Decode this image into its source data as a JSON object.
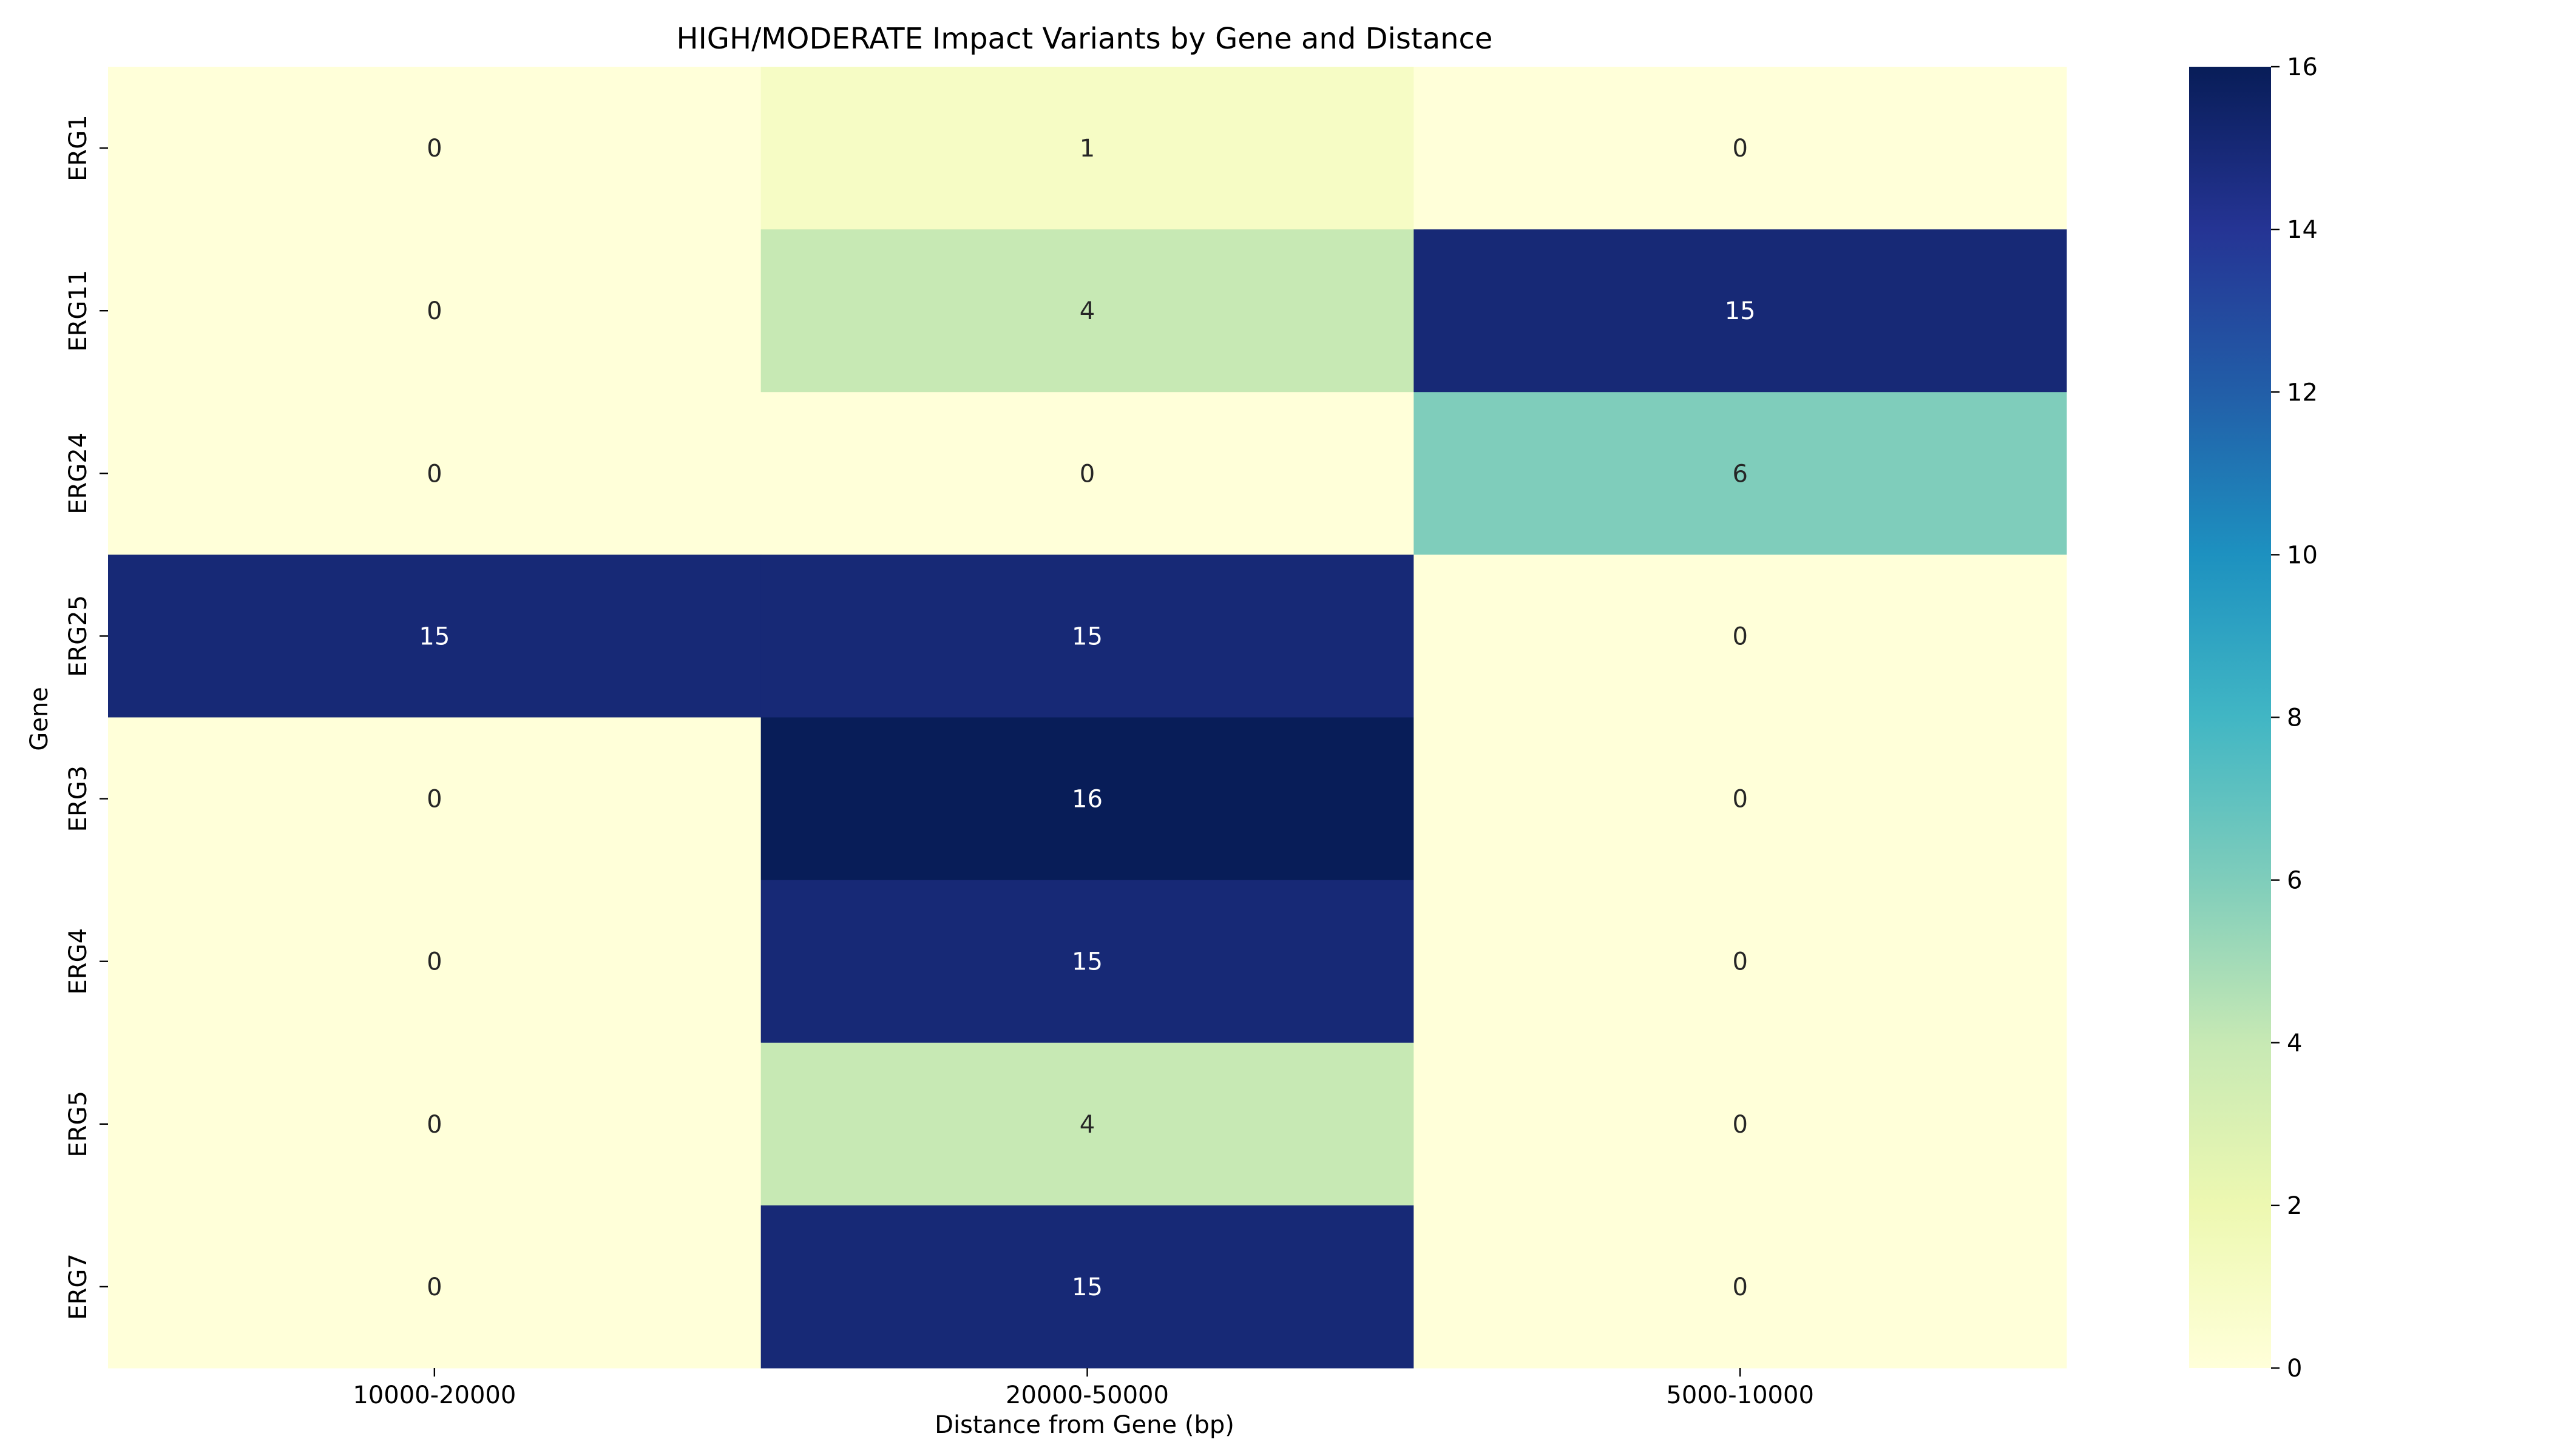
{
  "chart_data": {
    "type": "heatmap",
    "title": "HIGH/MODERATE Impact Variants by Gene and Distance",
    "xlabel": "Distance from Gene (bp)",
    "ylabel": "Gene",
    "x_categories": [
      "10000-20000",
      "20000-50000",
      "5000-10000"
    ],
    "y_categories": [
      "ERG1",
      "ERG11",
      "ERG24",
      "ERG25",
      "ERG3",
      "ERG4",
      "ERG5",
      "ERG7"
    ],
    "values": [
      [
        0,
        1,
        0
      ],
      [
        0,
        4,
        15
      ],
      [
        0,
        0,
        6
      ],
      [
        15,
        15,
        0
      ],
      [
        0,
        16,
        0
      ],
      [
        0,
        15,
        0
      ],
      [
        0,
        4,
        0
      ],
      [
        0,
        15,
        0
      ]
    ],
    "colorbar": {
      "colormap": "YlGnBu",
      "range": [
        0,
        16
      ],
      "ticks": [
        0,
        2,
        4,
        6,
        8,
        10,
        12,
        14,
        16
      ],
      "colors": [
        "#ffffd9",
        "#edf8b1",
        "#c7e9b4",
        "#7fcdbb",
        "#41b6c4",
        "#1d91c0",
        "#225ea8",
        "#253494",
        "#081d58"
      ]
    },
    "annotations": true,
    "grid": false
  }
}
